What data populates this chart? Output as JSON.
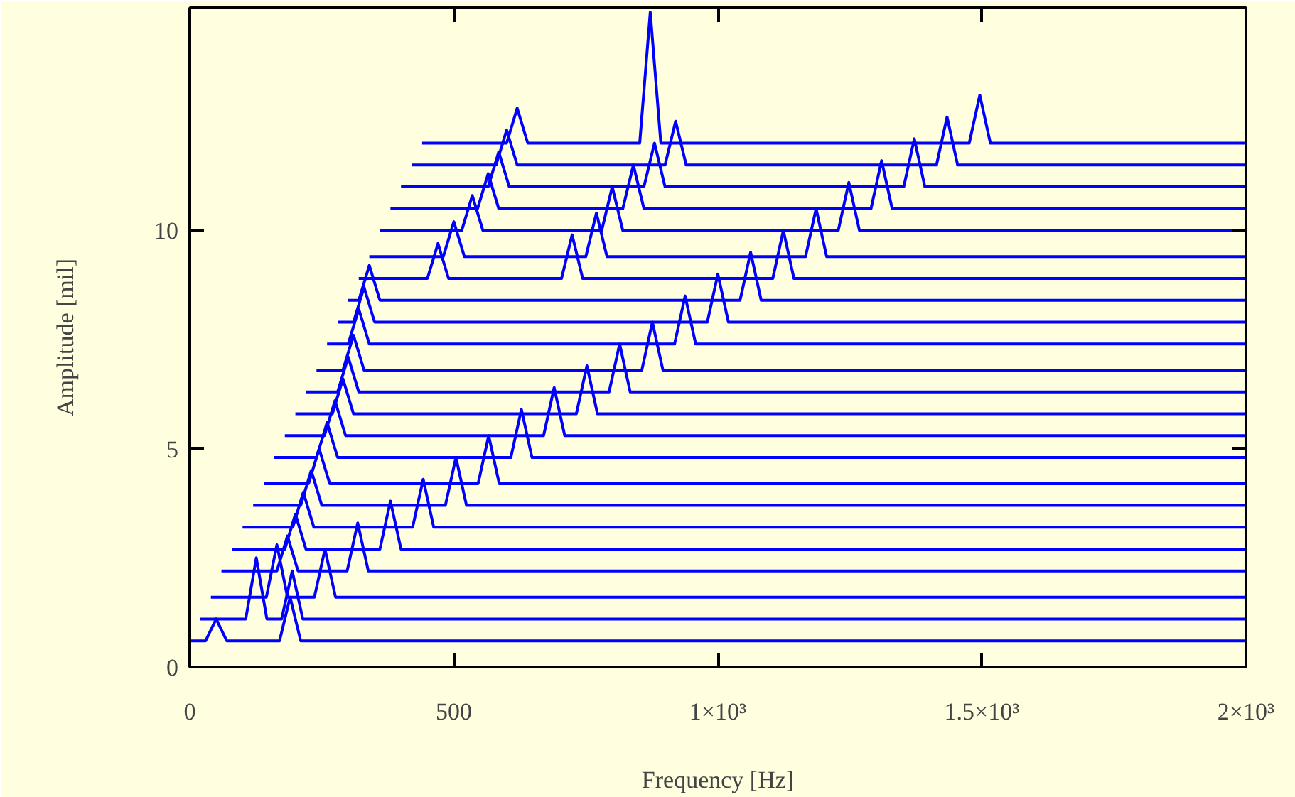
{
  "chart_data": {
    "type": "line",
    "xlabel": "Frequency [Hz]",
    "ylabel": "Amplitude [mil]",
    "xlim": [
      0,
      2000
    ],
    "ylim": [
      0,
      15.1
    ],
    "xticks": [
      0,
      500,
      {
        "value": 1000,
        "label": "1×10³"
      },
      {
        "value": 1500,
        "label": "1.5×10³"
      },
      {
        "value": 2000,
        "label": "2×10³"
      }
    ],
    "yticks": [
      0,
      5,
      10
    ],
    "line_style": "solid",
    "series": [
      {
        "color": "#0000ff",
        "x": [
          0,
          30,
          50,
          70,
          170,
          190,
          210,
          2000
        ],
        "values": [
          0.6,
          0.6,
          1.1,
          0.6,
          0.6,
          1.6,
          0.6,
          0.6
        ]
      },
      {
        "color": "#0000ff",
        "x": [
          20,
          106,
          126,
          146,
          174,
          194,
          214,
          2000
        ],
        "values": [
          1.1,
          1.1,
          2.5,
          1.1,
          1.1,
          2.2,
          1.1,
          1.1
        ]
      },
      {
        "color": "#0000ff",
        "x": [
          40,
          145,
          165,
          185,
          236,
          256,
          276,
          2000
        ],
        "values": [
          1.6,
          1.6,
          2.8,
          1.6,
          1.6,
          2.7,
          1.6,
          1.6
        ]
      },
      {
        "color": "#0000ff",
        "x": [
          60,
          165,
          185,
          205,
          298,
          318,
          338,
          2000
        ],
        "values": [
          2.2,
          2.2,
          3.0,
          2.2,
          2.2,
          3.3,
          2.2,
          2.2
        ]
      },
      {
        "color": "#0000ff",
        "x": [
          80,
          180,
          200,
          220,
          360,
          380,
          400,
          2000
        ],
        "values": [
          2.7,
          2.7,
          3.5,
          2.7,
          2.7,
          3.8,
          2.7,
          2.7
        ]
      },
      {
        "color": "#0000ff",
        "x": [
          100,
          195,
          215,
          235,
          422,
          442,
          462,
          2000
        ],
        "values": [
          3.2,
          3.2,
          4.0,
          3.2,
          3.2,
          4.3,
          3.2,
          3.2
        ]
      },
      {
        "color": "#0000ff",
        "x": [
          120,
          210,
          230,
          250,
          484,
          504,
          524,
          2000
        ],
        "values": [
          3.7,
          3.7,
          4.5,
          3.7,
          3.7,
          4.8,
          3.7,
          3.7
        ]
      },
      {
        "color": "#0000ff",
        "x": [
          140,
          225,
          245,
          265,
          546,
          566,
          586,
          2000
        ],
        "values": [
          4.2,
          4.2,
          5.0,
          4.2,
          4.2,
          5.3,
          4.2,
          4.2
        ]
      },
      {
        "color": "#0000ff",
        "x": [
          160,
          240,
          260,
          280,
          608,
          628,
          648,
          2000
        ],
        "values": [
          4.8,
          4.8,
          5.6,
          4.8,
          4.8,
          5.9,
          4.8,
          4.8
        ]
      },
      {
        "color": "#0000ff",
        "x": [
          180,
          255,
          275,
          295,
          670,
          690,
          710,
          2000
        ],
        "values": [
          5.3,
          5.3,
          6.1,
          5.3,
          5.3,
          6.4,
          5.3,
          5.3
        ]
      },
      {
        "color": "#0000ff",
        "x": [
          200,
          270,
          290,
          310,
          732,
          752,
          772,
          2000
        ],
        "values": [
          5.8,
          5.8,
          6.6,
          5.8,
          5.8,
          6.9,
          5.8,
          5.8
        ]
      },
      {
        "color": "#0000ff",
        "x": [
          220,
          280,
          300,
          320,
          794,
          814,
          834,
          2000
        ],
        "values": [
          6.3,
          6.3,
          7.1,
          6.3,
          6.3,
          7.4,
          6.3,
          6.3
        ]
      },
      {
        "color": "#0000ff",
        "x": [
          240,
          290,
          310,
          330,
          856,
          876,
          896,
          2000
        ],
        "values": [
          6.8,
          6.8,
          7.6,
          6.8,
          6.8,
          7.9,
          6.8,
          6.8
        ]
      },
      {
        "color": "#0000ff",
        "x": [
          260,
          300,
          320,
          340,
          918,
          938,
          958,
          2000
        ],
        "values": [
          7.4,
          7.4,
          8.2,
          7.4,
          7.4,
          8.5,
          7.4,
          7.4
        ]
      },
      {
        "color": "#0000ff",
        "x": [
          280,
          310,
          330,
          350,
          980,
          1000,
          1020,
          2000
        ],
        "values": [
          7.9,
          7.9,
          8.7,
          7.9,
          7.9,
          9.0,
          7.9,
          7.9
        ]
      },
      {
        "color": "#0000ff",
        "x": [
          300,
          320,
          340,
          360,
          1042,
          1062,
          1082,
          2000
        ],
        "values": [
          8.4,
          8.4,
          9.2,
          8.4,
          8.4,
          9.5,
          8.4,
          8.4
        ]
      },
      {
        "color": "#0000ff",
        "x": [
          320,
          450,
          470,
          490,
          704,
          724,
          744,
          1104,
          1124,
          1144,
          2000
        ],
        "values": [
          8.9,
          8.9,
          9.7,
          8.9,
          8.9,
          9.9,
          8.9,
          8.9,
          10.0,
          8.9,
          8.9
        ]
      },
      {
        "color": "#0000ff",
        "x": [
          340,
          480,
          500,
          520,
          750,
          770,
          790,
          1166,
          1186,
          1206,
          2000
        ],
        "values": [
          9.4,
          9.4,
          10.2,
          9.4,
          9.4,
          10.4,
          9.4,
          9.4,
          10.5,
          9.4,
          9.4
        ]
      },
      {
        "color": "#0000ff",
        "x": [
          360,
          515,
          535,
          555,
          780,
          800,
          820,
          1228,
          1248,
          1268,
          2000
        ],
        "values": [
          10.0,
          10.0,
          10.8,
          10.0,
          10.0,
          11.0,
          10.0,
          10.0,
          11.1,
          10.0,
          10.0
        ]
      },
      {
        "color": "#0000ff",
        "x": [
          380,
          545,
          565,
          585,
          820,
          840,
          860,
          1290,
          1310,
          1330,
          2000
        ],
        "values": [
          10.5,
          10.5,
          11.3,
          10.5,
          10.5,
          11.5,
          10.5,
          10.5,
          11.6,
          10.5,
          10.5
        ]
      },
      {
        "color": "#0000ff",
        "x": [
          400,
          565,
          585,
          605,
          860,
          880,
          900,
          1352,
          1372,
          1392,
          2000
        ],
        "values": [
          11.0,
          11.0,
          11.8,
          11.0,
          11.0,
          12.0,
          11.0,
          11.0,
          12.1,
          11.0,
          11.0
        ]
      },
      {
        "color": "#0000ff",
        "x": [
          420,
          580,
          600,
          620,
          900,
          920,
          940,
          1414,
          1434,
          1454,
          2000
        ],
        "values": [
          11.5,
          11.5,
          12.3,
          11.5,
          11.5,
          12.5,
          11.5,
          11.5,
          12.6,
          11.5,
          11.5
        ]
      },
      {
        "color": "#0000ff",
        "x": [
          440,
          600,
          620,
          640,
          852,
          872,
          892,
          1476,
          1496,
          1516,
          2000
        ],
        "values": [
          12.0,
          12.0,
          12.8,
          12.0,
          12.0,
          15.0,
          12.0,
          12.0,
          13.1,
          12.0,
          12.0
        ]
      }
    ]
  }
}
